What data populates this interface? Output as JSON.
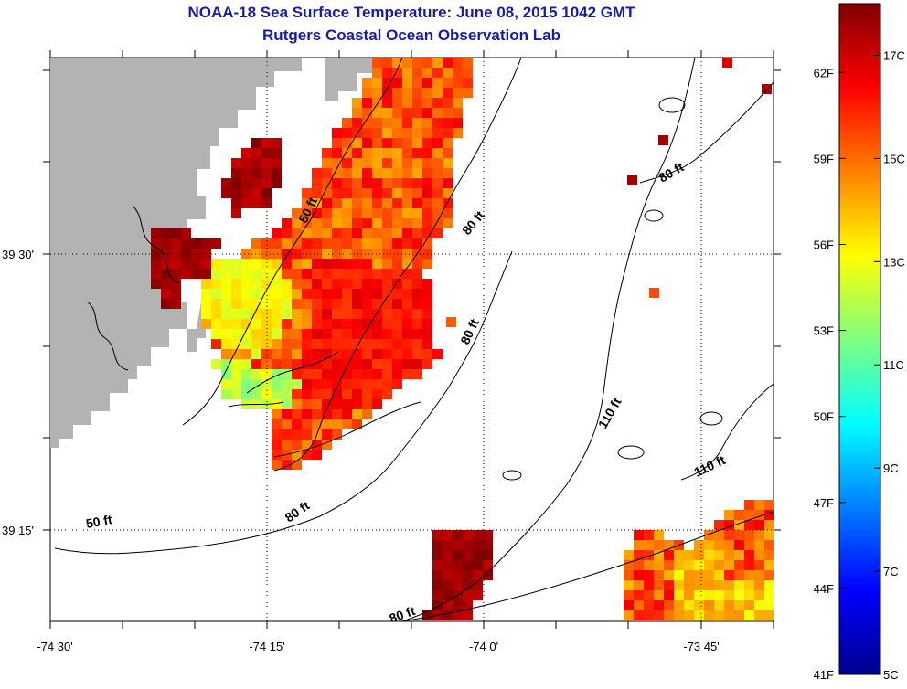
{
  "title": "NOAA-18 Sea Surface Temperature:  June 08, 2015 1042 GMT",
  "subtitle": "Rutgers Coastal Ocean Observation Lab",
  "axes": {
    "lon_labels": [
      "-74 30'",
      "-74 15'",
      "-74 0'",
      "-73 45'"
    ],
    "lat_labels": [
      "39 30'",
      "39 15'"
    ]
  },
  "contour_labels": [
    "50 ft",
    "80 ft",
    "80 ft",
    "80 ft",
    "110 ft",
    "110 ft",
    "50 ft",
    "80 ft",
    "80 ft"
  ],
  "colorbar": {
    "fahrenheit_labels": [
      "62F",
      "59F",
      "56F",
      "53F",
      "50F",
      "47F",
      "44F",
      "41F"
    ],
    "celsius_labels": [
      "17C",
      "15C",
      "13C",
      "11C",
      "9C",
      "7C",
      "5C"
    ],
    "min_celsius": 5,
    "max_celsius": 18
  },
  "colors": {
    "land": "#b3b3b3",
    "title": "#1a1aa8",
    "gridline": "#000000"
  }
}
